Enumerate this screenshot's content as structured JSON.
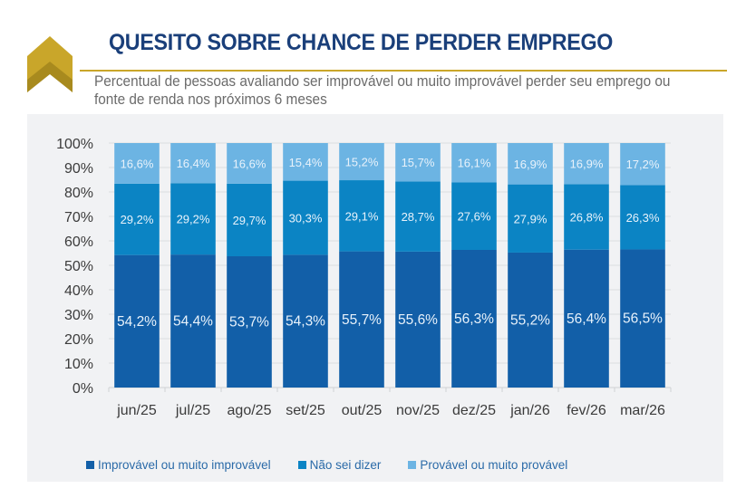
{
  "header": {
    "title": "QUESITO SOBRE CHANCE DE PERDER EMPREGO",
    "subtitle": "Percentual de pessoas avaliando ser improvável ou muito improvável perder seu emprego ou fonte de renda nos próximos 6 meses",
    "logo_icon": "chevron-up-icon"
  },
  "colors": {
    "title": "#1a3f7a",
    "accent_gold": "#c9a62a",
    "series_improvavel": "#125fa8",
    "series_nao_sei": "#0b84c4",
    "series_provavel": "#6cb4e3"
  },
  "chart_data": {
    "type": "bar",
    "stacked": true,
    "title": "",
    "xlabel": "",
    "ylabel": "",
    "ylim": [
      0,
      100
    ],
    "yticks": [
      "0%",
      "10%",
      "20%",
      "30%",
      "40%",
      "50%",
      "60%",
      "70%",
      "80%",
      "90%",
      "100%"
    ],
    "grid": true,
    "legend_position": "bottom",
    "categories": [
      "jun/25",
      "jul/25",
      "ago/25",
      "set/25",
      "out/25",
      "nov/25",
      "dez/25",
      "jan/26",
      "fev/26",
      "mar/26"
    ],
    "series": [
      {
        "name": "Improvável ou muito improvável",
        "color": "#125fa8",
        "values": [
          54.2,
          54.4,
          53.7,
          54.3,
          55.7,
          55.6,
          56.3,
          55.2,
          56.4,
          56.5
        ],
        "labels": [
          "54,2%",
          "54,4%",
          "53,7%",
          "54,3%",
          "55,7%",
          "55,6%",
          "56,3%",
          "55,2%",
          "56,4%",
          "56,5%"
        ]
      },
      {
        "name": "Não sei dizer",
        "color": "#0b84c4",
        "values": [
          29.2,
          29.2,
          29.7,
          30.3,
          29.1,
          28.7,
          27.6,
          27.9,
          26.8,
          26.3
        ],
        "labels": [
          "29,2%",
          "29,2%",
          "29,7%",
          "30,3%",
          "29,1%",
          "28,7%",
          "27,6%",
          "27,9%",
          "26,8%",
          "26,3%"
        ]
      },
      {
        "name": "Provável ou muito provável",
        "color": "#6cb4e3",
        "values": [
          16.6,
          16.4,
          16.6,
          15.4,
          15.2,
          15.7,
          16.1,
          16.9,
          16.9,
          17.2
        ],
        "labels": [
          "16,6%",
          "16,4%",
          "16,6%",
          "15,4%",
          "15,2%",
          "15,7%",
          "16,1%",
          "16,9%",
          "16,9%",
          "17,2%"
        ]
      }
    ]
  }
}
